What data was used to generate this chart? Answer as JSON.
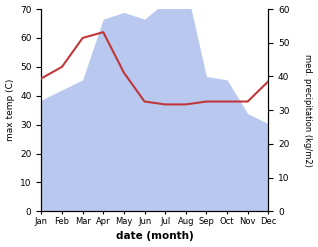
{
  "months": [
    "Jan",
    "Feb",
    "Mar",
    "Apr",
    "May",
    "Jun",
    "Jul",
    "Aug",
    "Sep",
    "Oct",
    "Nov",
    "Dec"
  ],
  "temperature": [
    46,
    50,
    60,
    62,
    48,
    38,
    37,
    37,
    38,
    38,
    38,
    45
  ],
  "precipitation": [
    33,
    36,
    39,
    57,
    59,
    57,
    62,
    67,
    40,
    39,
    29,
    26
  ],
  "temp_color": "#c0373a",
  "precip_color_fill": "#b8c8ee",
  "ylabel_left": "max temp (C)",
  "ylabel_right": "med. precipitation (kg/m2)",
  "xlabel": "date (month)",
  "ylim_left": [
    0,
    70
  ],
  "ylim_right": [
    0,
    60
  ],
  "yticks_left": [
    0,
    10,
    20,
    30,
    40,
    50,
    60,
    70
  ],
  "yticks_right": [
    0,
    10,
    20,
    30,
    40,
    50,
    60
  ],
  "figsize": [
    3.18,
    2.47
  ],
  "dpi": 100
}
